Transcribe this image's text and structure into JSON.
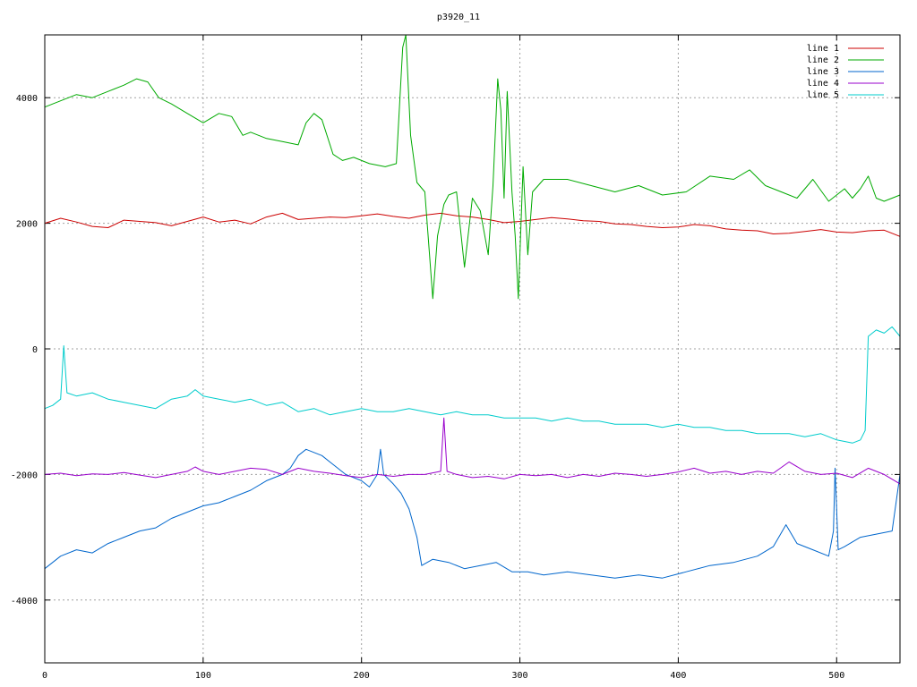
{
  "chart_data": {
    "type": "line",
    "title": "p3920_11",
    "xlabel": "",
    "ylabel": "",
    "xlim": [
      0,
      540
    ],
    "ylim": [
      -5000,
      5000
    ],
    "xticks": [
      0,
      100,
      200,
      300,
      400,
      500
    ],
    "yticks": [
      -4000,
      -2000,
      0,
      2000,
      4000
    ],
    "grid": true,
    "legend_position": "top-right",
    "series": [
      {
        "name": "line 1",
        "color": "#cc0000",
        "x": [
          0,
          10,
          20,
          30,
          40,
          50,
          60,
          70,
          80,
          90,
          100,
          110,
          120,
          130,
          140,
          150,
          160,
          170,
          180,
          190,
          200,
          210,
          220,
          230,
          240,
          250,
          260,
          270,
          280,
          290,
          300,
          310,
          320,
          330,
          340,
          350,
          360,
          370,
          380,
          390,
          400,
          410,
          420,
          430,
          440,
          450,
          460,
          470,
          480,
          490,
          500,
          510,
          520,
          530,
          540
        ],
        "y": [
          2000,
          2080,
          2020,
          1950,
          1930,
          2050,
          2030,
          2010,
          1960,
          2030,
          2100,
          2020,
          2050,
          1990,
          2100,
          2160,
          2060,
          2080,
          2100,
          2090,
          2120,
          2150,
          2110,
          2080,
          2130,
          2160,
          2120,
          2100,
          2060,
          2010,
          2030,
          2060,
          2090,
          2070,
          2040,
          2030,
          1990,
          1980,
          1950,
          1930,
          1940,
          1980,
          1960,
          1910,
          1890,
          1880,
          1830,
          1840,
          1870,
          1900,
          1860,
          1850,
          1880,
          1890,
          1790
        ]
      },
      {
        "name": "line 2",
        "color": "#00aa00",
        "x": [
          0,
          5,
          10,
          20,
          30,
          40,
          50,
          58,
          65,
          72,
          80,
          90,
          100,
          110,
          118,
          125,
          130,
          140,
          150,
          160,
          165,
          170,
          175,
          182,
          188,
          195,
          205,
          215,
          222,
          226,
          228,
          231,
          235,
          240,
          245,
          248,
          252,
          255,
          260,
          265,
          270,
          275,
          280,
          283,
          286,
          288,
          290,
          292,
          295,
          297,
          299,
          302,
          305,
          308,
          315,
          330,
          345,
          360,
          375,
          390,
          405,
          420,
          435,
          445,
          455,
          465,
          475,
          485,
          495,
          505,
          510,
          515,
          520,
          525,
          530,
          535,
          540
        ],
        "y": [
          3850,
          3900,
          3950,
          4050,
          4000,
          4100,
          4200,
          4300,
          4250,
          4000,
          3900,
          3750,
          3600,
          3750,
          3700,
          3400,
          3450,
          3350,
          3300,
          3250,
          3600,
          3750,
          3650,
          3100,
          3000,
          3050,
          2950,
          2900,
          2950,
          4800,
          5000,
          3400,
          2650,
          2500,
          800,
          1800,
          2300,
          2450,
          2500,
          1300,
          2400,
          2200,
          1500,
          2600,
          4300,
          3800,
          2400,
          4100,
          2500,
          1800,
          800,
          2900,
          1500,
          2500,
          2700,
          2700,
          2600,
          2500,
          2600,
          2450,
          2500,
          2750,
          2700,
          2850,
          2600,
          2500,
          2400,
          2700,
          2350,
          2550,
          2400,
          2550,
          2750,
          2400,
          2350,
          2400,
          2450
        ]
      },
      {
        "name": "line 3",
        "color": "#0066cc",
        "x": [
          0,
          10,
          20,
          30,
          40,
          50,
          60,
          70,
          80,
          90,
          100,
          110,
          120,
          130,
          140,
          150,
          155,
          160,
          165,
          170,
          175,
          180,
          185,
          190,
          195,
          200,
          205,
          210,
          212,
          214,
          220,
          225,
          230,
          235,
          238,
          245,
          255,
          265,
          275,
          285,
          295,
          305,
          315,
          330,
          345,
          360,
          375,
          390,
          405,
          420,
          435,
          450,
          460,
          468,
          475,
          485,
          495,
          498,
          499,
          501,
          505,
          515,
          525,
          535,
          540
        ],
        "y": [
          -3500,
          -3300,
          -3200,
          -3250,
          -3100,
          -3000,
          -2900,
          -2850,
          -2700,
          -2600,
          -2500,
          -2450,
          -2350,
          -2250,
          -2100,
          -2000,
          -1900,
          -1700,
          -1600,
          -1650,
          -1700,
          -1800,
          -1900,
          -2000,
          -2050,
          -2100,
          -2200,
          -2000,
          -1600,
          -2000,
          -2150,
          -2300,
          -2550,
          -3000,
          -3450,
          -3350,
          -3400,
          -3500,
          -3450,
          -3400,
          -3550,
          -3550,
          -3600,
          -3550,
          -3600,
          -3650,
          -3600,
          -3650,
          -3550,
          -3450,
          -3400,
          -3300,
          -3150,
          -2800,
          -3100,
          -3200,
          -3300,
          -2900,
          -1900,
          -3200,
          -3150,
          -3000,
          -2950,
          -2900,
          -2000
        ]
      },
      {
        "name": "line 4",
        "color": "#9900cc",
        "x": [
          0,
          10,
          20,
          30,
          40,
          50,
          60,
          70,
          80,
          90,
          95,
          100,
          110,
          120,
          130,
          140,
          150,
          160,
          170,
          180,
          190,
          200,
          210,
          220,
          230,
          240,
          250,
          252,
          254,
          260,
          270,
          280,
          290,
          300,
          310,
          320,
          330,
          340,
          350,
          360,
          370,
          380,
          390,
          400,
          410,
          420,
          430,
          440,
          450,
          460,
          470,
          480,
          490,
          500,
          510,
          520,
          530,
          540
        ],
        "y": [
          -2000,
          -1980,
          -2020,
          -1990,
          -2000,
          -1970,
          -2010,
          -2050,
          -2000,
          -1950,
          -1880,
          -1950,
          -2000,
          -1950,
          -1900,
          -1920,
          -2000,
          -1900,
          -1950,
          -1980,
          -2020,
          -2050,
          -2000,
          -2030,
          -2000,
          -2000,
          -1950,
          -1100,
          -1950,
          -2000,
          -2050,
          -2030,
          -2070,
          -2000,
          -2020,
          -2000,
          -2050,
          -2000,
          -2030,
          -1980,
          -2000,
          -2030,
          -2000,
          -1960,
          -1900,
          -1980,
          -1950,
          -2000,
          -1950,
          -1980,
          -1800,
          -1950,
          -2000,
          -1980,
          -2050,
          -1900,
          -2000,
          -2150
        ]
      },
      {
        "name": "line 5",
        "color": "#00cccc",
        "x": [
          0,
          5,
          10,
          12,
          14,
          20,
          30,
          40,
          50,
          60,
          70,
          80,
          90,
          95,
          100,
          110,
          120,
          130,
          140,
          150,
          160,
          170,
          180,
          190,
          200,
          210,
          220,
          230,
          240,
          250,
          260,
          270,
          280,
          290,
          300,
          310,
          320,
          330,
          340,
          350,
          360,
          370,
          380,
          390,
          400,
          410,
          420,
          430,
          440,
          450,
          460,
          470,
          480,
          490,
          500,
          510,
          515,
          518,
          520,
          525,
          530,
          535,
          540
        ],
        "y": [
          -950,
          -900,
          -800,
          50,
          -700,
          -750,
          -700,
          -800,
          -850,
          -900,
          -950,
          -800,
          -750,
          -650,
          -750,
          -800,
          -850,
          -800,
          -900,
          -850,
          -1000,
          -950,
          -1050,
          -1000,
          -950,
          -1000,
          -1000,
          -950,
          -1000,
          -1050,
          -1000,
          -1050,
          -1050,
          -1100,
          -1100,
          -1100,
          -1150,
          -1100,
          -1150,
          -1150,
          -1200,
          -1200,
          -1200,
          -1250,
          -1200,
          -1250,
          -1250,
          -1300,
          -1300,
          -1350,
          -1350,
          -1350,
          -1400,
          -1350,
          -1450,
          -1500,
          -1450,
          -1300,
          200,
          300,
          250,
          350,
          200
        ]
      }
    ]
  }
}
